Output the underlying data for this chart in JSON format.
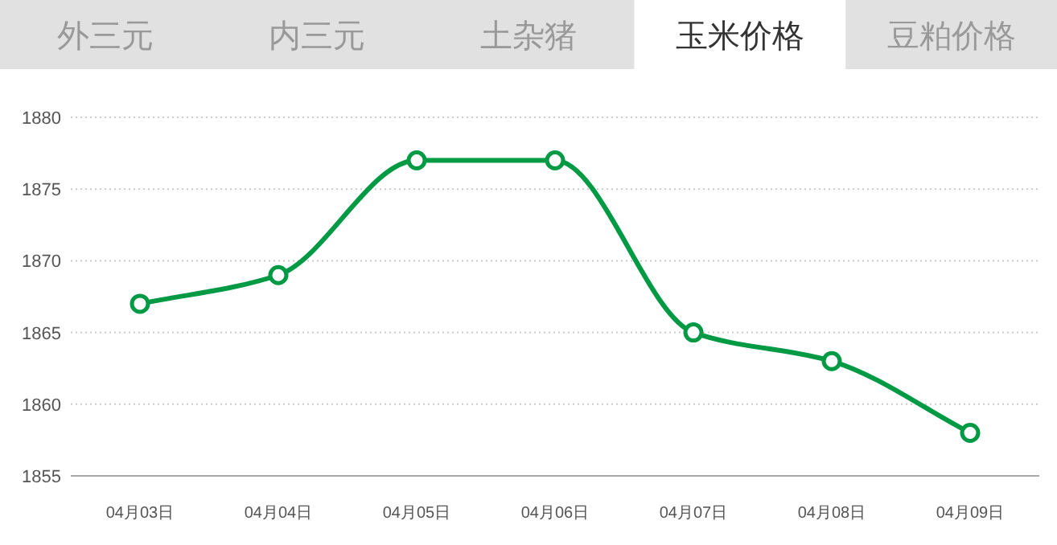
{
  "chart_data": {
    "type": "line",
    "title": "玉米价格",
    "annotations": [
      "外三元",
      "内三元",
      "土杂猪",
      "豆粕价格"
    ],
    "categories": [
      "04月03日",
      "04月04日",
      "04月05日",
      "04月06日",
      "04月07日",
      "04月08日",
      "04月09日"
    ],
    "series": [
      {
        "color": "#009944",
        "values": [
          1867,
          1869,
          1877,
          1877,
          1865,
          1863,
          1858
        ]
      }
    ],
    "ylim": [
      1855,
      1880
    ],
    "yticks": [
      1855,
      1860,
      1865,
      1870,
      1875,
      1880
    ],
    "grid": "y",
    "marker": "circle",
    "line_style": "solid"
  }
}
